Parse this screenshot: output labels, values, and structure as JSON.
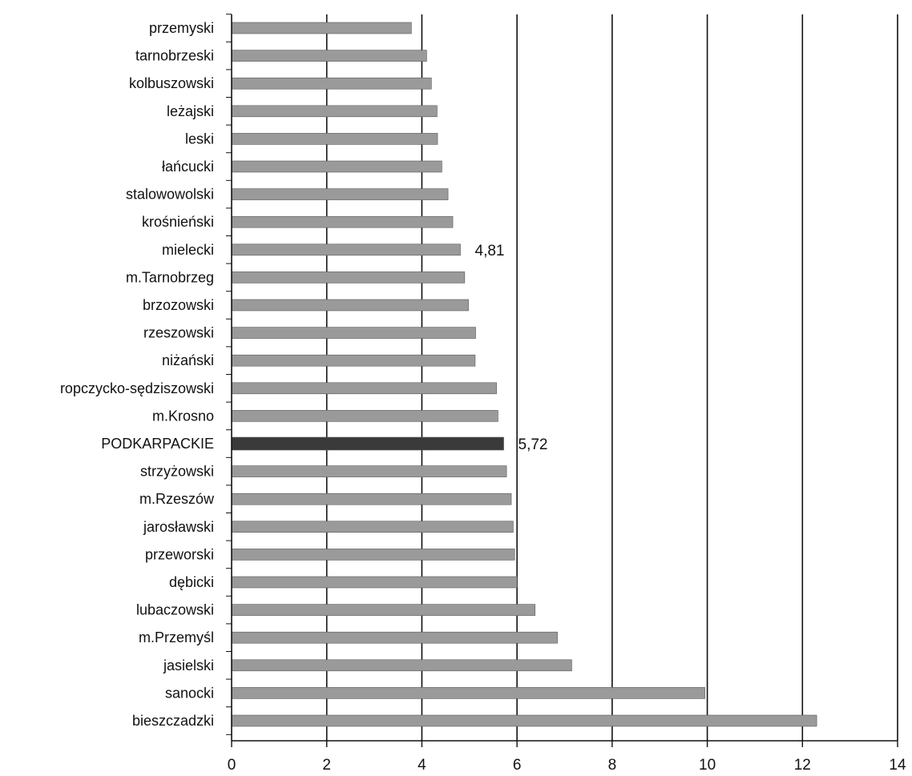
{
  "chart_data": {
    "type": "bar",
    "orientation": "horizontal",
    "title": "",
    "xlabel": "",
    "ylabel": "",
    "xlim": [
      0,
      14
    ],
    "xticks": [
      0,
      2,
      4,
      6,
      8,
      10,
      12,
      14
    ],
    "grid": "vertical major gridlines",
    "legend": "none",
    "categories": [
      "przemyski",
      "tarnobrzeski",
      "kolbuszowski",
      "leżajski",
      "leski",
      "łańcucki",
      "stalowowolski",
      "krośnieński",
      "mielecki",
      "m.Tarnobrzeg",
      "brzozowski",
      "rzeszowski",
      "niżański",
      "ropczycko-sędziszowski",
      "m.Krosno",
      "PODKARPACKIE",
      "strzyżowski",
      "m.Rzeszów",
      "jarosławski",
      "przeworski",
      "dębicki",
      "lubaczowski",
      "m.Przemyśl",
      "jasielski",
      "sanocki",
      "bieszczadzki"
    ],
    "values": [
      3.78,
      4.1,
      4.2,
      4.32,
      4.33,
      4.42,
      4.55,
      4.65,
      4.81,
      4.9,
      4.98,
      5.13,
      5.12,
      5.57,
      5.6,
      5.72,
      5.78,
      5.88,
      5.92,
      5.95,
      6.0,
      6.38,
      6.85,
      7.15,
      9.95,
      12.3
    ],
    "highlight": {
      "category": "PODKARPACKIE",
      "color": "#3a3a3a"
    },
    "data_labels": [
      {
        "category": "mielecki",
        "text": "4,81"
      },
      {
        "category": "PODKARPACKIE",
        "text": "5,72"
      }
    ],
    "colors": {
      "bar": "#9a9a9a",
      "bar_highlight": "#3a3a3a",
      "gridline": "#111111",
      "axis": "#111111"
    }
  }
}
